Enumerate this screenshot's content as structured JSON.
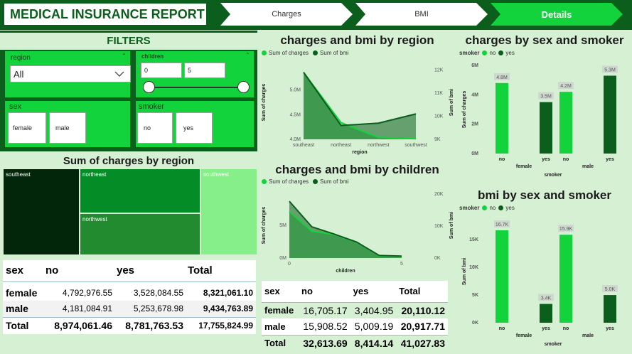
{
  "header": {
    "title": "MEDICAL INSURANCE REPORT",
    "nav": [
      "Charges",
      "BMI",
      "Details"
    ]
  },
  "filters": {
    "title": "FILTERS",
    "region": {
      "label": "region",
      "value": "All"
    },
    "children": {
      "label": "children",
      "min": "0",
      "max": "5"
    },
    "sex": {
      "label": "sex",
      "options": [
        "female",
        "male"
      ]
    },
    "smoker": {
      "label": "smoker",
      "options": [
        "no",
        "yes"
      ]
    }
  },
  "treemap": {
    "title": "Sum of charges by region",
    "tiles": [
      "southeast",
      "northeast",
      "southwest",
      "northwest"
    ]
  },
  "charges_matrix": {
    "headers": [
      "sex",
      "no",
      "yes",
      "Total"
    ],
    "rows": [
      [
        "female",
        "4,792,976.55",
        "3,528,084.55",
        "8,321,061.10"
      ],
      [
        "male",
        "4,181,084.91",
        "5,253,678.98",
        "9,434,763.89"
      ]
    ],
    "total": [
      "Total",
      "8,974,061.46",
      "8,781,763.53",
      "17,755,824.99"
    ]
  },
  "bmi_matrix": {
    "headers": [
      "sex",
      "no",
      "yes",
      "Total"
    ],
    "rows": [
      [
        "female",
        "16,705.17",
        "3,404.95",
        "20,110.12"
      ],
      [
        "male",
        "15,908.52",
        "5,009.19",
        "20,917.71"
      ]
    ],
    "total": [
      "Total",
      "32,613.69",
      "8,414.14",
      "41,027.83"
    ]
  },
  "colors": {
    "light_green": "#13d33d",
    "dark_green": "#0b5e1c"
  },
  "chart_data": [
    {
      "type": "area",
      "title": "charges and bmi by region",
      "categories": [
        "southeast",
        "northeast",
        "northwest",
        "southwest"
      ],
      "series": [
        {
          "name": "Sum of charges",
          "values": [
            5.36,
            4.34,
            4.04,
            4.01
          ]
        },
        {
          "name": "Sum of bmi",
          "values": [
            11900,
            9600,
            9700,
            10100
          ]
        }
      ],
      "xlabel": "region",
      "ylabel": "Sum of charges",
      "y2label": "Sum of bmi",
      "yticks": [
        "4.0M",
        "4.5M",
        "5.0M"
      ],
      "y2ticks": [
        "9K",
        "10K",
        "11K",
        "12K"
      ]
    },
    {
      "type": "area",
      "title": "charges and bmi by children",
      "categories": [
        0,
        1,
        2,
        3,
        4,
        5
      ],
      "series": [
        {
          "name": "Sum of charges",
          "values": [
            7.1,
            4.1,
            3.6,
            2.4,
            0.35,
            0.16
          ]
        },
        {
          "name": "Sum of bmi",
          "values": [
            17800,
            9800,
            7500,
            5000,
            800,
            600
          ]
        }
      ],
      "xlabel": "children",
      "ylabel": "Sum of charges",
      "y2label": "Sum of bmi",
      "yticks": [
        "0M",
        "5M"
      ],
      "y2ticks": [
        "0K",
        "10K",
        "20K"
      ],
      "xticks": [
        "0",
        "5"
      ]
    },
    {
      "type": "bar",
      "title": "charges by sex and smoker",
      "legend_title": "smoker",
      "legend": [
        "no",
        "yes"
      ],
      "groups": [
        "female",
        "male"
      ],
      "subcategories": [
        "no",
        "yes"
      ],
      "values": [
        [
          4.8,
          3.5
        ],
        [
          4.2,
          5.3
        ]
      ],
      "labels": [
        [
          "4.8M",
          "3.5M"
        ],
        [
          "4.2M",
          "5.3M"
        ]
      ],
      "xlabel": "smoker",
      "ylabel": "Sum of charges",
      "yticks": [
        "0M",
        "2M",
        "4M",
        "6M"
      ]
    },
    {
      "type": "bar",
      "title": "bmi by sex and smoker",
      "legend_title": "smoker",
      "legend": [
        "no",
        "yes"
      ],
      "groups": [
        "female",
        "male"
      ],
      "subcategories": [
        "no",
        "yes"
      ],
      "values": [
        [
          16.7,
          3.4
        ],
        [
          15.9,
          5.0
        ]
      ],
      "labels": [
        [
          "16.7K",
          "3.4K"
        ],
        [
          "15.9K",
          "5.0K"
        ]
      ],
      "xlabel": "smoker",
      "ylabel": "Sum of bmi",
      "yticks": [
        "0K",
        "5K",
        "10K",
        "15K"
      ]
    }
  ]
}
